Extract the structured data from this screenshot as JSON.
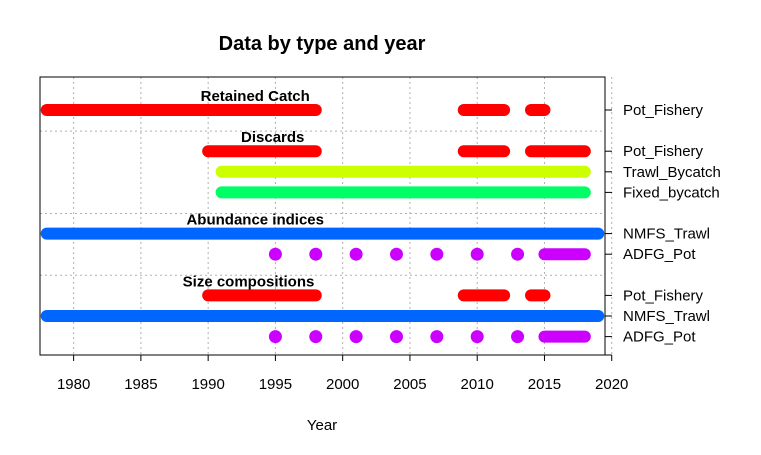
{
  "chart_data": {
    "type": "timeline",
    "title": "Data by type and year",
    "xlabel": "Year",
    "xlim": [
      1977.5,
      2019.5
    ],
    "x_ticks": [
      1980,
      1985,
      1990,
      1995,
      2000,
      2005,
      2010,
      2015,
      2020
    ],
    "grid": true,
    "groups": [
      {
        "label": "Retained Catch",
        "rows": [
          {
            "name": "Pot_Fishery",
            "color": "#FF0000",
            "style": "segments",
            "segments": [
              [
                1978,
                1998
              ],
              [
                2009,
                2012
              ],
              [
                2014,
                2015
              ]
            ]
          }
        ]
      },
      {
        "label": "Discards",
        "rows": [
          {
            "name": "Pot_Fishery",
            "color": "#FF0000",
            "style": "segments",
            "segments": [
              [
                1990,
                1998
              ],
              [
                2009,
                2012
              ],
              [
                2014,
                2018
              ]
            ]
          },
          {
            "name": "Trawl_Bycatch",
            "color": "#CCFF00",
            "style": "segments",
            "segments": [
              [
                1991,
                2018
              ]
            ]
          },
          {
            "name": "Fixed_bycatch",
            "color": "#00FF66",
            "style": "segments",
            "segments": [
              [
                1991,
                2018
              ]
            ]
          }
        ]
      },
      {
        "label": "Abundance indices",
        "rows": [
          {
            "name": "NMFS_Trawl",
            "color": "#0066FF",
            "style": "segments",
            "segments": [
              [
                1978,
                2019
              ]
            ]
          },
          {
            "name": "ADFG_Pot",
            "color": "#CC00FF",
            "style": "mixed",
            "points": [
              1995,
              1998,
              2001,
              2004,
              2007,
              2010,
              2013
            ],
            "segments": [
              [
                2015,
                2018
              ]
            ]
          }
        ]
      },
      {
        "label": "Size compositions",
        "rows": [
          {
            "name": "Pot_Fishery",
            "color": "#FF0000",
            "style": "segments",
            "segments": [
              [
                1990,
                1998
              ],
              [
                2009,
                2012
              ],
              [
                2014,
                2015
              ]
            ]
          },
          {
            "name": "NMFS_Trawl",
            "color": "#0066FF",
            "style": "segments",
            "segments": [
              [
                1978,
                2019
              ]
            ]
          },
          {
            "name": "ADFG_Pot",
            "color": "#CC00FF",
            "style": "mixed",
            "points": [
              1995,
              1998,
              2001,
              2004,
              2007,
              2010,
              2013
            ],
            "segments": [
              [
                2015,
                2018
              ]
            ]
          }
        ]
      }
    ]
  }
}
